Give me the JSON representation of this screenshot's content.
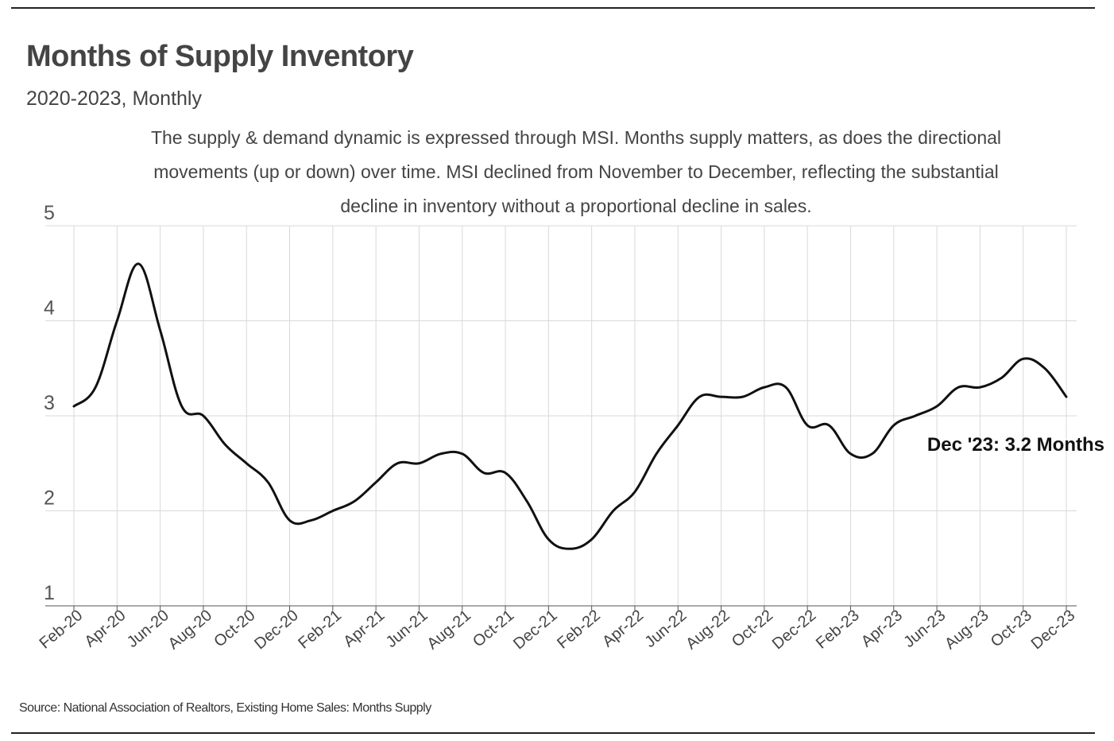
{
  "header": {
    "title": "Months of Supply Inventory",
    "subtitle": "2020-2023, Monthly",
    "description": "The supply & demand dynamic is expressed through MSI. Months supply matters, as does the directional movements (up or down) over time. MSI declined from November to December, reflecting the substantial decline in inventory without a proportional decline in sales."
  },
  "footer": {
    "source": "Source:  National Association of Realtors, Existing Home Sales: Months Supply"
  },
  "colors": {
    "line": "#111111",
    "grid": "#d9d9d9",
    "axis": "#555555"
  },
  "chart_data": {
    "type": "line",
    "title": "Months of Supply Inventory",
    "xlabel": "",
    "ylabel": "",
    "ylim": [
      1,
      5
    ],
    "yticks": [
      1,
      2,
      3,
      4,
      5
    ],
    "grid": true,
    "legend": "none",
    "x": [
      "Feb-20",
      "Mar-20",
      "Apr-20",
      "May-20",
      "Jun-20",
      "Jul-20",
      "Aug-20",
      "Sep-20",
      "Oct-20",
      "Nov-20",
      "Dec-20",
      "Jan-21",
      "Feb-21",
      "Mar-21",
      "Apr-21",
      "May-21",
      "Jun-21",
      "Jul-21",
      "Aug-21",
      "Sep-21",
      "Oct-21",
      "Nov-21",
      "Dec-21",
      "Jan-22",
      "Feb-22",
      "Mar-22",
      "Apr-22",
      "May-22",
      "Jun-22",
      "Jul-22",
      "Aug-22",
      "Sep-22",
      "Oct-22",
      "Nov-22",
      "Dec-22",
      "Jan-23",
      "Feb-23",
      "Mar-23",
      "Apr-23",
      "May-23",
      "Jun-23",
      "Jul-23",
      "Aug-23",
      "Sep-23",
      "Oct-23",
      "Nov-23",
      "Dec-23"
    ],
    "tick_labels": [
      "Feb-20",
      "Apr-20",
      "Jun-20",
      "Aug-20",
      "Oct-20",
      "Dec-20",
      "Feb-21",
      "Apr-21",
      "Jun-21",
      "Aug-21",
      "Oct-21",
      "Dec-21",
      "Feb-22",
      "Apr-22",
      "Jun-22",
      "Aug-22",
      "Oct-22",
      "Dec-22",
      "Feb-23",
      "Apr-23",
      "Jun-23",
      "Aug-23",
      "Oct-23",
      "Dec-23"
    ],
    "series": [
      {
        "name": "Months Supply",
        "values": [
          3.1,
          3.3,
          4.0,
          4.6,
          3.9,
          3.1,
          3.0,
          2.7,
          2.5,
          2.3,
          1.9,
          1.9,
          2.0,
          2.1,
          2.3,
          2.5,
          2.5,
          2.6,
          2.6,
          2.4,
          2.4,
          2.1,
          1.7,
          1.6,
          1.7,
          2.0,
          2.2,
          2.6,
          2.9,
          3.2,
          3.2,
          3.2,
          3.3,
          3.3,
          2.9,
          2.9,
          2.6,
          2.6,
          2.9,
          3.0,
          3.1,
          3.3,
          3.3,
          3.4,
          3.6,
          3.5,
          3.2
        ]
      }
    ],
    "end_annotation": "Dec '23: 3.2 Months"
  }
}
